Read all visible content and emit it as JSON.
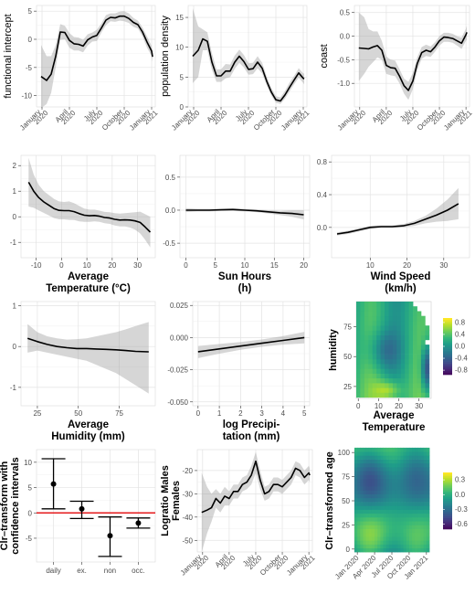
{
  "chart_data": [
    {
      "id": "p1",
      "type": "line",
      "ylabel": "functional intercept",
      "xlabel": "",
      "ylim": [
        -12,
        6
      ],
      "yticks": [
        5,
        0,
        -5,
        -10
      ],
      "xticks": [
        {
          "x": 0,
          "l1": "January",
          "l2": "2020"
        },
        {
          "x": 3,
          "l1": "April",
          "l2": "2020"
        },
        {
          "x": 6,
          "l1": "July",
          "l2": "2020"
        },
        {
          "x": 9,
          "l1": "October",
          "l2": "2020"
        },
        {
          "x": 12,
          "l1": "January",
          "l2": "2021"
        }
      ],
      "xlim": [
        -0.6,
        12.4
      ],
      "x": [
        -0.1,
        0.5,
        1,
        1.5,
        2,
        2.5,
        3,
        3.5,
        4,
        4.5,
        5,
        5.5,
        6,
        6.5,
        7,
        7.5,
        8,
        8.5,
        9,
        9.5,
        10,
        10.5,
        11,
        11.5,
        12,
        12.1
      ],
      "y": [
        -6.6,
        -7.3,
        -6.2,
        -3,
        1.3,
        1.2,
        -0.2,
        -0.8,
        -0.9,
        -1.2,
        -0.1,
        0.4,
        0.7,
        2,
        3.4,
        3.9,
        3.8,
        4.1,
        4.1,
        3.7,
        3,
        2.6,
        1.3,
        -0.5,
        -2.1,
        -3.1
      ],
      "lo": [
        -12.2,
        -11.5,
        -9.5,
        -5,
        -0.1,
        0,
        -1.5,
        -2,
        -2,
        -2.3,
        -1.1,
        -0.4,
        -0.3,
        1.2,
        2.5,
        3.2,
        3.1,
        3.3,
        3.2,
        2.9,
        2.2,
        1.9,
        0.5,
        -1.5,
        -3,
        -4
      ],
      "hi": [
        -1,
        -3,
        -3,
        -1,
        2.7,
        2.4,
        1.1,
        0.4,
        0.3,
        -0.1,
        0.9,
        1.2,
        1.7,
        2.8,
        4.3,
        4.6,
        4.6,
        4.9,
        5,
        4.6,
        3.8,
        3.3,
        2.1,
        0.5,
        -1.2,
        -2.2
      ]
    },
    {
      "id": "p2",
      "type": "line",
      "ylabel": "population density",
      "xlabel": "",
      "ylim": [
        0,
        17
      ],
      "yticks": [
        15,
        10,
        5,
        0
      ],
      "xticks": [
        {
          "x": 0,
          "l1": "January",
          "l2": "2020"
        },
        {
          "x": 3,
          "l1": "April",
          "l2": "2020"
        },
        {
          "x": 6,
          "l1": "July",
          "l2": "2020"
        },
        {
          "x": 9,
          "l1": "October",
          "l2": "2020"
        },
        {
          "x": 12,
          "l1": "January",
          "l2": "2021"
        }
      ],
      "xlim": [
        -0.6,
        12.4
      ],
      "x": [
        -0.1,
        0.5,
        1,
        1.5,
        2,
        2.5,
        3,
        3.5,
        4,
        4.5,
        5,
        5.5,
        6,
        6.5,
        7,
        7.5,
        8,
        8.5,
        9,
        9.5,
        10,
        10.5,
        11,
        11.5,
        12,
        12.1
      ],
      "y": [
        8.5,
        9.5,
        11.4,
        11,
        7.5,
        5.2,
        5.2,
        6,
        6,
        7.5,
        8.5,
        7.6,
        6.3,
        6.4,
        7.5,
        6.5,
        4.3,
        2.5,
        1.2,
        1,
        2,
        3.3,
        4.5,
        5.7,
        4.8,
        4.7
      ],
      "lo": [
        4,
        5,
        9.5,
        9.5,
        6.2,
        4.2,
        4.2,
        4.8,
        5,
        6.4,
        7.4,
        6.6,
        5.4,
        5.5,
        6.5,
        5.6,
        3.6,
        1.9,
        0.7,
        0.5,
        1.4,
        2.6,
        3.8,
        4.9,
        4,
        3.8
      ],
      "hi": [
        16.5,
        13.5,
        13,
        12.5,
        9,
        6.3,
        6.3,
        7.2,
        7.1,
        8.6,
        9.6,
        8.7,
        7.3,
        7.4,
        8.5,
        7.4,
        5.1,
        3.2,
        1.8,
        1.6,
        2.7,
        4.1,
        5.2,
        6.5,
        5.6,
        5.6
      ]
    },
    {
      "id": "p3",
      "type": "line",
      "ylabel": "coast",
      "xlabel": "",
      "ylim": [
        -1.5,
        0.65
      ],
      "yticks": [
        0.5,
        0,
        -0.5,
        -1
      ],
      "ytickLabels": [
        "0.5",
        "0.0",
        "-0.5",
        "-1.0"
      ],
      "xticks": [
        {
          "x": 0,
          "l1": "January",
          "l2": "2020"
        },
        {
          "x": 3,
          "l1": "April",
          "l2": "2020"
        },
        {
          "x": 6,
          "l1": "July",
          "l2": "2020"
        },
        {
          "x": 9,
          "l1": "October",
          "l2": "2020"
        },
        {
          "x": 12,
          "l1": "January",
          "l2": "2021"
        }
      ],
      "xlim": [
        -0.6,
        12.4
      ],
      "x": [
        -0.1,
        0.5,
        1,
        1.5,
        2,
        2.5,
        3,
        3.5,
        4,
        4.5,
        5,
        5.5,
        6,
        6.5,
        7,
        7.5,
        8,
        8.5,
        9,
        9.5,
        10,
        10.5,
        11,
        11.5,
        12,
        12.1
      ],
      "y": [
        -0.25,
        -0.26,
        -0.27,
        -0.23,
        -0.2,
        -0.3,
        -0.62,
        -0.67,
        -0.68,
        -0.85,
        -1.05,
        -1.15,
        -0.95,
        -0.58,
        -0.35,
        -0.3,
        -0.33,
        -0.23,
        -0.1,
        -0.02,
        -0.03,
        -0.05,
        -0.1,
        -0.15,
        0.03,
        0.08
      ],
      "lo": [
        -0.95,
        -0.8,
        -0.65,
        -0.55,
        -0.45,
        -0.5,
        -0.8,
        -0.83,
        -0.85,
        -1,
        -1.22,
        -1.35,
        -1.12,
        -0.72,
        -0.48,
        -0.42,
        -0.44,
        -0.33,
        -0.2,
        -0.12,
        -0.12,
        -0.14,
        -0.2,
        -0.27,
        -0.1,
        -0.08
      ],
      "hi": [
        0.5,
        0.4,
        0.15,
        0.1,
        0.1,
        -0.1,
        -0.43,
        -0.5,
        -0.52,
        -0.7,
        -0.9,
        -0.97,
        -0.78,
        -0.45,
        -0.23,
        -0.18,
        -0.22,
        -0.13,
        0,
        0.07,
        0.07,
        0.05,
        0,
        -0.03,
        0.16,
        0.22
      ]
    },
    {
      "id": "p4",
      "type": "line",
      "ylabel": "",
      "xlabel": "Average\nTemperature (°C)",
      "ylim": [
        -1.6,
        2.4
      ],
      "yticks": [
        2,
        1,
        0,
        -1
      ],
      "xticks": [
        {
          "x": -10,
          "l1": "-10"
        },
        {
          "x": 0,
          "l1": "0"
        },
        {
          "x": 10,
          "l1": "10"
        },
        {
          "x": 20,
          "l1": "20"
        },
        {
          "x": 30,
          "l1": "30"
        }
      ],
      "xlim": [
        -16,
        37
      ],
      "x": [
        -13,
        -11,
        -9,
        -7,
        -5,
        -3,
        -1,
        1,
        3,
        5,
        7,
        9,
        11,
        13,
        15,
        17,
        19,
        21,
        23,
        25,
        27,
        29,
        31,
        33,
        35
      ],
      "y": [
        1.35,
        1,
        0.75,
        0.58,
        0.45,
        0.32,
        0.25,
        0.24,
        0.24,
        0.2,
        0.12,
        0.06,
        0.04,
        0.05,
        0.02,
        -0.03,
        -0.05,
        -0.1,
        -0.13,
        -0.12,
        -0.13,
        -0.16,
        -0.22,
        -0.4,
        -0.6
      ],
      "lo": [
        0.4,
        0.35,
        0.25,
        0.15,
        0.05,
        -0.05,
        -0.1,
        -0.1,
        -0.12,
        -0.13,
        -0.18,
        -0.2,
        -0.2,
        -0.18,
        -0.2,
        -0.25,
        -0.28,
        -0.34,
        -0.38,
        -0.38,
        -0.42,
        -0.5,
        -0.65,
        -0.9,
        -1.2
      ],
      "hi": [
        2.3,
        1.65,
        1.25,
        1,
        0.85,
        0.7,
        0.6,
        0.58,
        0.6,
        0.53,
        0.42,
        0.32,
        0.28,
        0.28,
        0.24,
        0.19,
        0.18,
        0.14,
        0.12,
        0.14,
        0.16,
        0.18,
        0.2,
        0.1,
        0
      ]
    },
    {
      "id": "p5",
      "type": "line",
      "ylabel": "",
      "xlabel": "Sun Hours\n(h)",
      "ylim": [
        -0.72,
        0.83
      ],
      "yticks": [
        0.5,
        0,
        -0.5
      ],
      "ytickLabels": [
        "0.5",
        "0.0",
        "-0.5"
      ],
      "xticks": [
        {
          "x": 0,
          "l1": "0"
        },
        {
          "x": 5,
          "l1": "5"
        },
        {
          "x": 10,
          "l1": "10"
        },
        {
          "x": 15,
          "l1": "15"
        },
        {
          "x": 20,
          "l1": "20"
        }
      ],
      "xlim": [
        -1,
        21
      ],
      "x": [
        0,
        2,
        4,
        6,
        8,
        10,
        12,
        14,
        16,
        18,
        20
      ],
      "y": [
        0,
        0,
        0,
        0.005,
        0.01,
        0,
        -0.01,
        -0.025,
        -0.04,
        -0.05,
        -0.07
      ],
      "lo": [
        -0.03,
        -0.02,
        -0.02,
        -0.01,
        -0.01,
        -0.02,
        -0.03,
        -0.05,
        -0.075,
        -0.1,
        -0.14
      ],
      "hi": [
        0.03,
        0.02,
        0.02,
        0.02,
        0.03,
        0.02,
        0.01,
        0,
        -0.01,
        0,
        0
      ]
    },
    {
      "id": "p6",
      "type": "line",
      "ylabel": "",
      "xlabel": "Wind Speed\n(km/h)",
      "ylim": [
        -0.37,
        0.88
      ],
      "yticks": [
        0.8,
        0.4,
        0
      ],
      "ytickLabels": [
        "0.8",
        "0.4",
        "0.0"
      ],
      "xticks": [
        {
          "x": 10,
          "l1": "10"
        },
        {
          "x": 20,
          "l1": "20"
        },
        {
          "x": 30,
          "l1": "30"
        }
      ],
      "xlim": [
        -0.5,
        37
      ],
      "x": [
        1,
        4,
        7,
        10,
        13,
        16,
        19,
        22,
        25,
        28,
        31,
        34
      ],
      "y": [
        -0.08,
        -0.06,
        -0.03,
        0,
        0.01,
        0.01,
        0.02,
        0.05,
        0.1,
        0.15,
        0.21,
        0.29
      ],
      "lo": [
        -0.1,
        -0.08,
        -0.05,
        -0.02,
        -0.005,
        -0.005,
        0,
        0.02,
        0.05,
        0.07,
        0.08,
        0.1
      ],
      "hi": [
        -0.06,
        -0.04,
        -0.01,
        0.02,
        0.025,
        0.025,
        0.04,
        0.08,
        0.14,
        0.23,
        0.34,
        0.48
      ]
    },
    {
      "id": "p7",
      "type": "line",
      "ylabel": "",
      "xlabel": "Average\nHumidity (mm)",
      "ylim": [
        -1.45,
        1.1
      ],
      "yticks": [
        1,
        0,
        -1
      ],
      "xticks": [
        {
          "x": 25,
          "l1": "25"
        },
        {
          "x": 50,
          "l1": "50"
        },
        {
          "x": 75,
          "l1": "75"
        }
      ],
      "xlim": [
        15,
        97
      ],
      "x": [
        19,
        25,
        31,
        37,
        43,
        49,
        55,
        61,
        67,
        73,
        79,
        85,
        93
      ],
      "y": [
        0.2,
        0.12,
        0.05,
        0,
        -0.03,
        -0.05,
        -0.05,
        -0.06,
        -0.07,
        -0.08,
        -0.1,
        -0.12,
        -0.13
      ],
      "lo": [
        -0.15,
        -0.1,
        -0.15,
        -0.2,
        -0.25,
        -0.3,
        -0.35,
        -0.45,
        -0.55,
        -0.65,
        -0.8,
        -0.95,
        -1.15
      ],
      "hi": [
        0.55,
        0.35,
        0.25,
        0.2,
        0.17,
        0.18,
        0.2,
        0.25,
        0.3,
        0.35,
        0.42,
        0.5,
        0.6
      ]
    },
    {
      "id": "p8",
      "type": "line",
      "ylabel": "",
      "xlabel": "log Precipi-\ntation (mm)",
      "ylim": [
        -0.053,
        0.028
      ],
      "yticks": [
        0.025,
        0,
        -0.025,
        -0.05
      ],
      "ytickLabels": [
        "0.025",
        "0.000",
        "-0.025",
        "-0.050"
      ],
      "xticks": [
        {
          "x": 0,
          "l1": "0"
        },
        {
          "x": 1,
          "l1": "1"
        },
        {
          "x": 2,
          "l1": "2"
        },
        {
          "x": 3,
          "l1": "3"
        },
        {
          "x": 4,
          "l1": "4"
        },
        {
          "x": 5,
          "l1": "5"
        }
      ],
      "xlim": [
        -0.25,
        5.25
      ],
      "x": [
        0,
        1,
        2,
        3,
        4,
        5
      ],
      "y": [
        -0.011,
        -0.0088,
        -0.0066,
        -0.0044,
        -0.0022,
        0
      ],
      "lo": [
        -0.016,
        -0.0125,
        -0.0095,
        -0.0072,
        -0.0055,
        -0.0045
      ],
      "hi": [
        -0.0065,
        -0.005,
        -0.0035,
        -0.0015,
        0.0012,
        0.0045
      ]
    },
    {
      "id": "p9",
      "type": "heatmap",
      "ylabel": "humidity",
      "xlabel": "Average\nTemperature",
      "xlim": [
        -1,
        36
      ],
      "ylim": [
        15,
        96
      ],
      "yticks": [
        25,
        50,
        75
      ],
      "xticks": [
        {
          "x": 0,
          "l1": "0"
        },
        {
          "x": 10,
          "l1": "10"
        },
        {
          "x": 20,
          "l1": "20"
        },
        {
          "x": 30,
          "l1": "30"
        }
      ],
      "legend_ticks": [
        0.8,
        0.4,
        0,
        -0.4,
        -0.8
      ],
      "legend_labels": [
        "0.8",
        "0.4",
        "0.0",
        "-0.4",
        "-0.8"
      ],
      "zlim": [
        -0.95,
        0.95
      ]
    },
    {
      "id": "p10",
      "type": "errorbar",
      "ylabel": "Clr–transform with\nconfidence intervals",
      "xlabel": "",
      "ylim": [
        -9.7,
        12.5
      ],
      "yticks": [
        10,
        5,
        0,
        -5
      ],
      "categories": [
        "daily",
        "ex.",
        "non",
        "occ."
      ],
      "estimate": [
        5.7,
        0.8,
        -4.5,
        -2
      ],
      "lower": [
        0.8,
        -1.1,
        -8.6,
        -3
      ],
      "upper": [
        10.7,
        2.3,
        -0.8,
        -1
      ],
      "reference_line": 0
    },
    {
      "id": "p11",
      "type": "line",
      "ylabel": "Logratio Males\nFemales",
      "xlabel": "",
      "ylim": [
        -55,
        -11
      ],
      "yticks": [
        -20,
        -30,
        -40,
        -50
      ],
      "xticks": [
        {
          "x": 0,
          "l1": "January",
          "l2": "2020"
        },
        {
          "x": 3,
          "l1": "April",
          "l2": "2020"
        },
        {
          "x": 6,
          "l1": "July",
          "l2": "2020"
        },
        {
          "x": 9,
          "l1": "October",
          "l2": "2020"
        },
        {
          "x": 12,
          "l1": "January",
          "l2": "2021"
        }
      ],
      "xlim": [
        -0.6,
        12.4
      ],
      "x": [
        -0.1,
        0.5,
        1,
        1.5,
        2,
        2.5,
        3,
        3.5,
        4,
        4.5,
        5,
        5.5,
        6,
        6.5,
        7,
        7.5,
        8,
        8.5,
        9,
        9.5,
        10,
        10.5,
        11,
        11.5,
        12,
        12.1
      ],
      "y": [
        -38,
        -37,
        -36,
        -32,
        -34,
        -31,
        -32,
        -29,
        -29,
        -26,
        -25,
        -22,
        -16,
        -24,
        -30,
        -29,
        -26,
        -26,
        -27,
        -25,
        -23,
        -19,
        -20,
        -23,
        -21,
        -22
      ],
      "lo": [
        -55,
        -47,
        -42,
        -36,
        -38,
        -35,
        -35,
        -32,
        -32,
        -29,
        -28,
        -26,
        -21,
        -28,
        -33,
        -32,
        -29,
        -29,
        -30,
        -28,
        -26,
        -22,
        -23,
        -26,
        -24,
        -25
      ],
      "hi": [
        -21,
        -27,
        -30,
        -28,
        -30,
        -27,
        -29,
        -26,
        -26,
        -23,
        -22,
        -18,
        -12,
        -20,
        -27,
        -26,
        -23,
        -23,
        -24,
        -22,
        -20,
        -16,
        -17,
        -20,
        -18,
        -19
      ]
    },
    {
      "id": "p12",
      "type": "heatmap",
      "ylabel": "Clr–transformed age",
      "xlabel": "",
      "xlim": [
        -0.5,
        12.5
      ],
      "ylim": [
        -3,
        103
      ],
      "yticks": [
        0,
        25,
        50,
        75,
        100
      ],
      "xticks": [
        {
          "x": 0,
          "l1": "Jan 2020"
        },
        {
          "x": 3,
          "l1": "Apr 2020"
        },
        {
          "x": 6,
          "l1": "Jul 2020"
        },
        {
          "x": 9,
          "l1": "Oct 2020"
        },
        {
          "x": 12,
          "l1": "Jan 2021"
        }
      ],
      "legend_ticks": [
        0.3,
        0,
        -0.3,
        -0.6
      ],
      "legend_labels": [
        "0.3",
        "0.0",
        "-0.3",
        "-0.6"
      ],
      "zlim": [
        -0.7,
        0.45
      ]
    }
  ]
}
